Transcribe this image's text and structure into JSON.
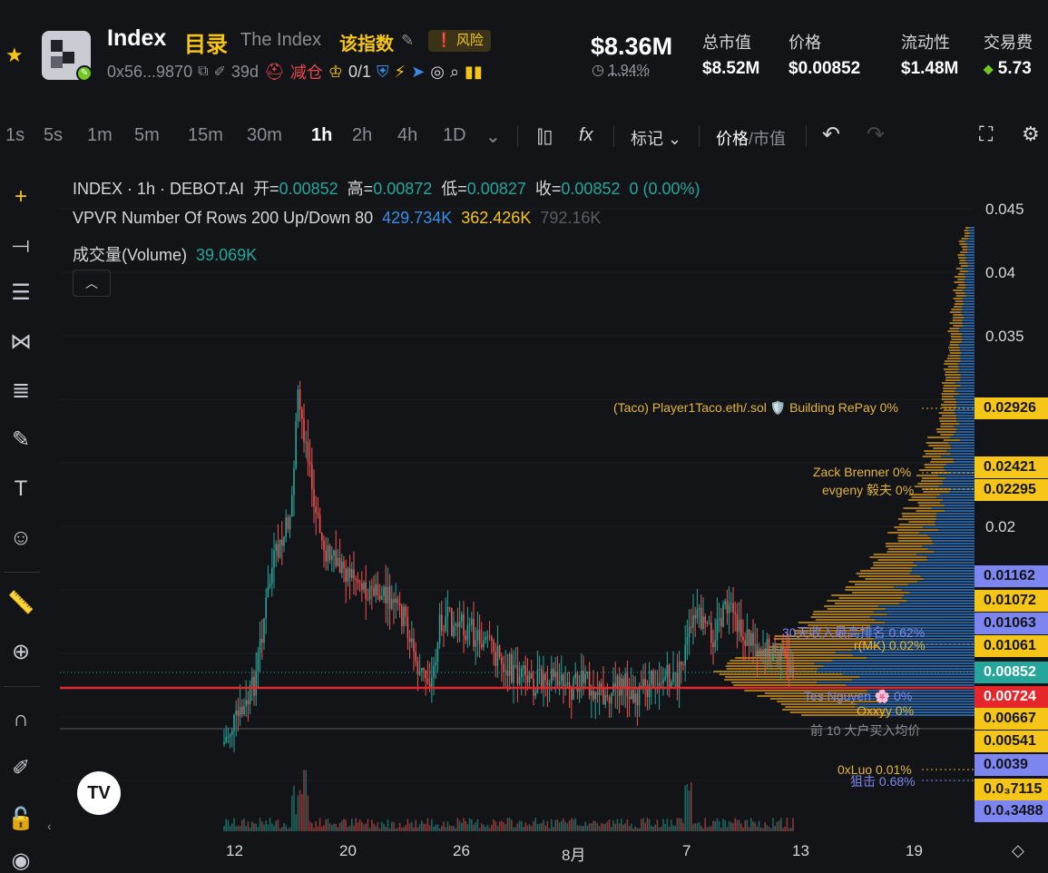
{
  "header": {
    "name": "Index",
    "name_cn": "目录",
    "full_name": "The Index",
    "full_name_cn": "该指数",
    "risk_label": "风险",
    "address": "0x56...9870",
    "age": "39d",
    "reduce_label": "减仓",
    "crown_count": "0/1",
    "market_cap": "$8.36M",
    "change": "1.94%",
    "stats": [
      {
        "label": "总市值",
        "value": "$8.52M"
      },
      {
        "label": "价格",
        "value": "$0.00852"
      },
      {
        "label": "流动性",
        "value": "$1.48M"
      },
      {
        "label": "交易费",
        "value": "5.73"
      }
    ]
  },
  "toolbar": {
    "timeframes": [
      "1s",
      "5s",
      "1m",
      "5m",
      "15m",
      "30m",
      "1h",
      "2h",
      "4h",
      "1D"
    ],
    "active_timeframe": "1h",
    "indicators_label": "fx",
    "mark_label": "标记",
    "price_label": "价格",
    "mcap_label": "市值"
  },
  "legend": {
    "title": "INDEX · 1h · DEBOT.AI",
    "open_label": "开=",
    "open": "0.00852",
    "high_label": "高=",
    "high": "0.00872",
    "low_label": "低=",
    "low": "0.00827",
    "close_label": "收=",
    "close": "0.00852",
    "change": "0 (0.00%)",
    "vpvr_label": "VPVR Number Of Rows 200 Up/Down 80",
    "vpvr_up": "429.734K",
    "vpvr_down": "362.426K",
    "vpvr_total": "792.16K",
    "volume_label": "成交量(Volume)",
    "volume": "39.069K"
  },
  "y_ticks": [
    "0.045",
    "0.04",
    "0.035",
    "0.02"
  ],
  "x_ticks": [
    "12",
    "20",
    "26",
    "8月",
    "7",
    "13",
    "19"
  ],
  "price_badges": [
    {
      "value": "0.02926",
      "color": "#f5c518"
    },
    {
      "value": "0.02421",
      "color": "#f5c518"
    },
    {
      "value": "0.02295",
      "color": "#f5c518"
    },
    {
      "value": "0.01162",
      "color": "#7d86f0"
    },
    {
      "value": "0.01072",
      "color": "#f5c518"
    },
    {
      "value": "0.01063",
      "color": "#7d86f0"
    },
    {
      "value": "0.01061",
      "color": "#f5c518"
    },
    {
      "value": "0.00852",
      "color": "#26a69a"
    },
    {
      "value": "0.00724",
      "color": "#e5262b"
    },
    {
      "value": "0.00667",
      "color": "#f5c518"
    },
    {
      "value": "0.00541",
      "color": "#f5c518"
    },
    {
      "value": "0.0039",
      "color": "#7d86f0"
    },
    {
      "value": "0.0₃7115",
      "color": "#f5c518"
    },
    {
      "value": "0.0₄3488",
      "color": "#7d86f0"
    }
  ],
  "annotations": {
    "taco": "(Taco) Player1Taco.eth/.sol 🛡️ Building RePay 0%",
    "zack": "Zack Brenner 0%",
    "evgeny": "evgeny 毅夫 0%",
    "thirty": "30天收入最高排名 0.62%",
    "mid": "r(MK) 0.02%",
    "tes": "Tes Nguyen 🌸 0%",
    "oxxyy": "Oxxyy 0%",
    "top10": "前 10 大户买入均价",
    "oxluo": "0xLuo 0.01%",
    "snipe": "狙击 0.68%"
  },
  "colors": {
    "up": "#26a69a",
    "down": "#ef5350",
    "accent": "#f5c518",
    "blue": "#3a8ee6",
    "redline": "#e5262b"
  }
}
